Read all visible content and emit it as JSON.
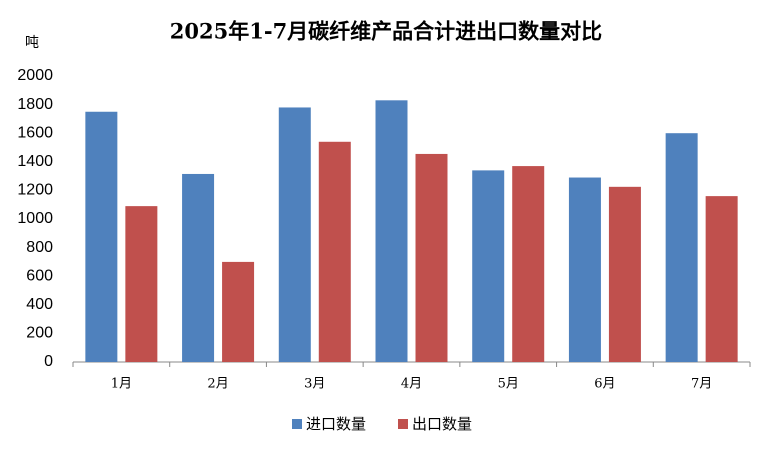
{
  "chart_data": {
    "type": "bar",
    "title": "2025年1-7月碳纤维产品合计进出口数量对比",
    "y_label": "吨",
    "categories": [
      "1月",
      "2月",
      "3月",
      "4月",
      "5月",
      "6月",
      "7月"
    ],
    "series": [
      {
        "name": "进口数量",
        "color": "#4f81bd",
        "values": [
          1750,
          1315,
          1780,
          1830,
          1340,
          1290,
          1600
        ]
      },
      {
        "name": "出口数量",
        "color": "#c0504d",
        "values": [
          1090,
          700,
          1540,
          1455,
          1370,
          1225,
          1160
        ]
      }
    ],
    "ylim": [
      0,
      2000
    ],
    "yticks": [
      0,
      200,
      400,
      600,
      800,
      1000,
      1200,
      1400,
      1600,
      1800,
      2000
    ],
    "grid": false,
    "legend": "bottom"
  }
}
